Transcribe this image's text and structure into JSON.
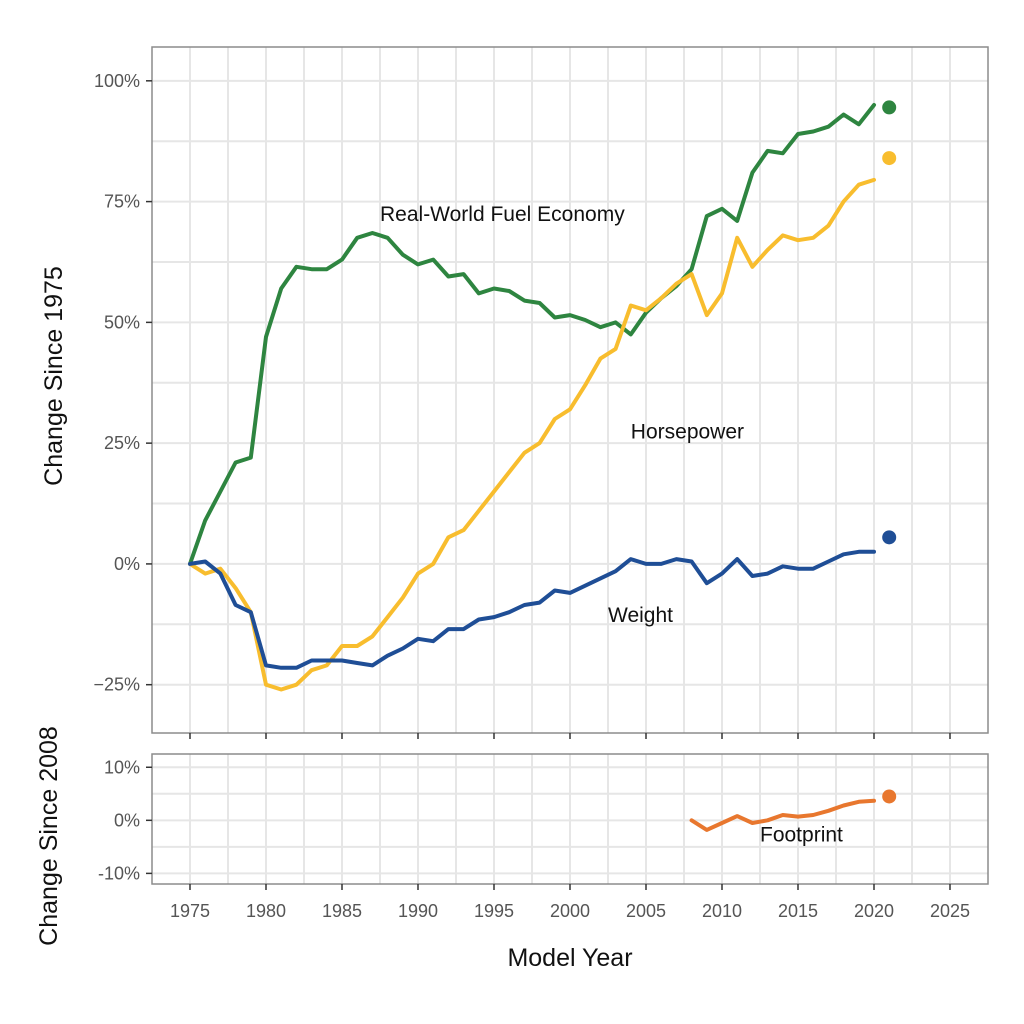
{
  "chart_data": {
    "type": "line",
    "xlabel": "Model Year",
    "x_ticks": [
      1975,
      1980,
      1985,
      1990,
      1995,
      2000,
      2005,
      2010,
      2015,
      2020,
      2025
    ],
    "x_tick_labels": [
      "1975",
      "1980",
      "1985",
      "1990",
      "1995",
      "2000",
      "2005",
      "2010",
      "2015",
      "2020",
      "2025"
    ],
    "xlim": [
      1972.5,
      2027.5
    ],
    "panels": [
      {
        "id": "top",
        "ylabel": "Change Since 1975",
        "ylim": [
          -35,
          107
        ],
        "y_ticks": [
          -25,
          0,
          25,
          50,
          75,
          100
        ],
        "y_tick_labels": [
          "−25%",
          "0%",
          "25%",
          "50%",
          "75%",
          "100%"
        ],
        "series": [
          {
            "name": "Real-World Fuel Economy",
            "label": "Real-World Fuel Economy",
            "label_at": [
              1987.5,
              71
            ],
            "color": "#2e8540",
            "x": [
              1975,
              1976,
              1977,
              1978,
              1979,
              1980,
              1981,
              1982,
              1983,
              1984,
              1985,
              1986,
              1987,
              1988,
              1989,
              1990,
              1991,
              1992,
              1993,
              1994,
              1995,
              1996,
              1997,
              1998,
              1999,
              2000,
              2001,
              2002,
              2003,
              2004,
              2005,
              2006,
              2007,
              2008,
              2009,
              2010,
              2011,
              2012,
              2013,
              2014,
              2015,
              2016,
              2017,
              2018,
              2019,
              2020
            ],
            "values": [
              0,
              9,
              15,
              21,
              22,
              47,
              57,
              61.5,
              61,
              61,
              63,
              67.5,
              68.5,
              67.5,
              64,
              62,
              63,
              59.5,
              60,
              56,
              57,
              56.5,
              54.5,
              54,
              51,
              51.5,
              50.5,
              49,
              50,
              47.5,
              52,
              55,
              57.5,
              61,
              72,
              73.5,
              71,
              81,
              85.5,
              85,
              89,
              89.5,
              90.5,
              93,
              91,
              95
            ],
            "projected": {
              "x": 2021,
              "value": 94.5
            }
          },
          {
            "name": "Horsepower",
            "label": "Horsepower",
            "label_at": [
              2004,
              26
            ],
            "color": "#f8bd2e",
            "x": [
              1975,
              1976,
              1977,
              1978,
              1979,
              1980,
              1981,
              1982,
              1983,
              1984,
              1985,
              1986,
              1987,
              1988,
              1989,
              1990,
              1991,
              1992,
              1993,
              1994,
              1995,
              1996,
              1997,
              1998,
              1999,
              2000,
              2001,
              2002,
              2003,
              2004,
              2005,
              2006,
              2007,
              2008,
              2009,
              2010,
              2011,
              2012,
              2013,
              2014,
              2015,
              2016,
              2017,
              2018,
              2019,
              2020
            ],
            "values": [
              0,
              -2,
              -1,
              -5,
              -10,
              -25,
              -26,
              -25,
              -22,
              -21,
              -17,
              -17,
              -15,
              -11,
              -7,
              -2,
              0,
              5.5,
              7,
              11,
              15,
              19,
              23,
              25,
              30,
              32,
              37,
              42.5,
              44.5,
              53.5,
              52.5,
              55,
              58,
              60,
              51.5,
              56,
              67.5,
              61.5,
              65,
              68,
              67,
              67.5,
              70,
              75,
              78.5,
              79.5
            ],
            "projected": {
              "x": 2021,
              "value": 84
            }
          },
          {
            "name": "Weight",
            "label": "Weight",
            "label_at": [
              2002.5,
              -12
            ],
            "color": "#1f4e96",
            "x": [
              1975,
              1976,
              1977,
              1978,
              1979,
              1980,
              1981,
              1982,
              1983,
              1984,
              1985,
              1986,
              1987,
              1988,
              1989,
              1990,
              1991,
              1992,
              1993,
              1994,
              1995,
              1996,
              1997,
              1998,
              1999,
              2000,
              2001,
              2002,
              2003,
              2004,
              2005,
              2006,
              2007,
              2008,
              2009,
              2010,
              2011,
              2012,
              2013,
              2014,
              2015,
              2016,
              2017,
              2018,
              2019,
              2020
            ],
            "values": [
              0,
              0.5,
              -2,
              -8.5,
              -10,
              -21,
              -21.5,
              -21.5,
              -20,
              -20,
              -20,
              -20.5,
              -21,
              -19,
              -17.5,
              -15.5,
              -16,
              -13.5,
              -13.5,
              -11.5,
              -11,
              -10,
              -8.5,
              -8,
              -5.5,
              -6,
              -4.5,
              -3,
              -1.5,
              1,
              0,
              0,
              1,
              0.5,
              -4,
              -2,
              1,
              -2.5,
              -2,
              -0.5,
              -1,
              -1,
              0.5,
              2,
              2.5,
              2.5
            ],
            "projected": {
              "x": 2021,
              "value": 5.5
            }
          }
        ]
      },
      {
        "id": "bottom",
        "ylabel": "Change Since 2008",
        "ylim": [
          -12,
          12.5
        ],
        "y_ticks": [
          -10,
          0,
          10
        ],
        "y_tick_labels": [
          "-10%",
          "0%",
          "10%"
        ],
        "series": [
          {
            "name": "Footprint",
            "label": "Footprint",
            "label_at": [
              2012.5,
              -4
            ],
            "color": "#e8772e",
            "x": [
              2008,
              2009,
              2010,
              2011,
              2012,
              2013,
              2014,
              2015,
              2016,
              2017,
              2018,
              2019,
              2020
            ],
            "values": [
              0,
              -1.8,
              -0.5,
              0.8,
              -0.5,
              0,
              1,
              0.7,
              1,
              1.8,
              2.8,
              3.5,
              3.7
            ],
            "projected": {
              "x": 2021,
              "value": 4.5
            }
          }
        ]
      }
    ]
  }
}
